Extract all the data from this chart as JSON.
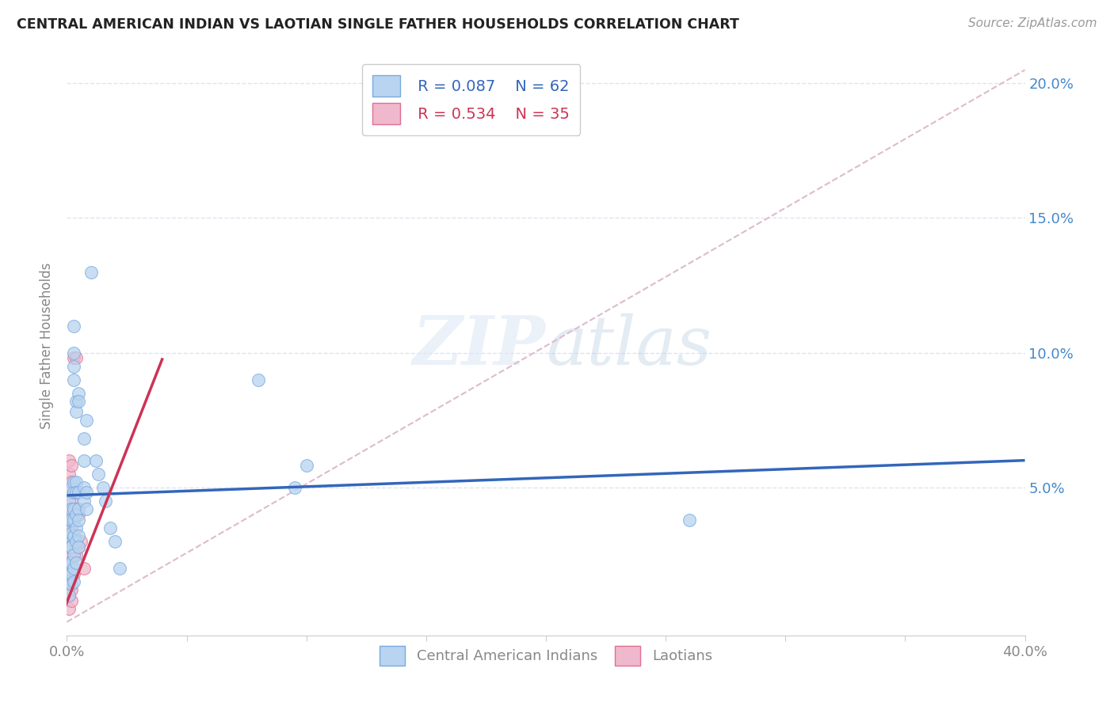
{
  "title": "CENTRAL AMERICAN INDIAN VS LAOTIAN SINGLE FATHER HOUSEHOLDS CORRELATION CHART",
  "source": "Source: ZipAtlas.com",
  "ylabel": "Single Father Households",
  "legend_blue_r": "R = 0.087",
  "legend_blue_n": "N = 62",
  "legend_pink_r": "R = 0.534",
  "legend_pink_n": "N = 35",
  "watermark": "ZIPatlas",
  "blue_scatter": [
    [
      0.001,
      0.045
    ],
    [
      0.001,
      0.038
    ],
    [
      0.001,
      0.032
    ],
    [
      0.001,
      0.028
    ],
    [
      0.001,
      0.022
    ],
    [
      0.001,
      0.018
    ],
    [
      0.001,
      0.015
    ],
    [
      0.001,
      0.01
    ],
    [
      0.002,
      0.05
    ],
    [
      0.002,
      0.042
    ],
    [
      0.002,
      0.038
    ],
    [
      0.002,
      0.033
    ],
    [
      0.002,
      0.028
    ],
    [
      0.002,
      0.022
    ],
    [
      0.002,
      0.018
    ],
    [
      0.002,
      0.014
    ],
    [
      0.003,
      0.11
    ],
    [
      0.003,
      0.1
    ],
    [
      0.003,
      0.095
    ],
    [
      0.003,
      0.09
    ],
    [
      0.003,
      0.052
    ],
    [
      0.003,
      0.048
    ],
    [
      0.003,
      0.042
    ],
    [
      0.003,
      0.038
    ],
    [
      0.003,
      0.032
    ],
    [
      0.003,
      0.025
    ],
    [
      0.003,
      0.02
    ],
    [
      0.003,
      0.015
    ],
    [
      0.004,
      0.082
    ],
    [
      0.004,
      0.078
    ],
    [
      0.004,
      0.052
    ],
    [
      0.004,
      0.048
    ],
    [
      0.004,
      0.04
    ],
    [
      0.004,
      0.035
    ],
    [
      0.004,
      0.03
    ],
    [
      0.004,
      0.022
    ],
    [
      0.005,
      0.085
    ],
    [
      0.005,
      0.082
    ],
    [
      0.005,
      0.048
    ],
    [
      0.005,
      0.042
    ],
    [
      0.005,
      0.038
    ],
    [
      0.005,
      0.032
    ],
    [
      0.005,
      0.028
    ],
    [
      0.007,
      0.068
    ],
    [
      0.007,
      0.06
    ],
    [
      0.007,
      0.05
    ],
    [
      0.007,
      0.045
    ],
    [
      0.008,
      0.075
    ],
    [
      0.008,
      0.048
    ],
    [
      0.008,
      0.042
    ],
    [
      0.01,
      0.13
    ],
    [
      0.012,
      0.06
    ],
    [
      0.013,
      0.055
    ],
    [
      0.015,
      0.05
    ],
    [
      0.016,
      0.045
    ],
    [
      0.018,
      0.035
    ],
    [
      0.02,
      0.03
    ],
    [
      0.022,
      0.02
    ],
    [
      0.08,
      0.09
    ],
    [
      0.095,
      0.05
    ],
    [
      0.1,
      0.058
    ],
    [
      0.26,
      0.038
    ]
  ],
  "pink_scatter": [
    [
      0.001,
      0.06
    ],
    [
      0.001,
      0.055
    ],
    [
      0.001,
      0.048
    ],
    [
      0.001,
      0.042
    ],
    [
      0.001,
      0.038
    ],
    [
      0.001,
      0.033
    ],
    [
      0.001,
      0.028
    ],
    [
      0.001,
      0.022
    ],
    [
      0.001,
      0.018
    ],
    [
      0.001,
      0.015
    ],
    [
      0.001,
      0.01
    ],
    [
      0.001,
      0.005
    ],
    [
      0.002,
      0.058
    ],
    [
      0.002,
      0.052
    ],
    [
      0.002,
      0.045
    ],
    [
      0.002,
      0.04
    ],
    [
      0.002,
      0.035
    ],
    [
      0.002,
      0.03
    ],
    [
      0.002,
      0.025
    ],
    [
      0.002,
      0.018
    ],
    [
      0.002,
      0.012
    ],
    [
      0.002,
      0.008
    ],
    [
      0.003,
      0.098
    ],
    [
      0.003,
      0.042
    ],
    [
      0.003,
      0.038
    ],
    [
      0.003,
      0.032
    ],
    [
      0.003,
      0.025
    ],
    [
      0.003,
      0.018
    ],
    [
      0.004,
      0.098
    ],
    [
      0.004,
      0.042
    ],
    [
      0.004,
      0.025
    ],
    [
      0.005,
      0.04
    ],
    [
      0.005,
      0.028
    ],
    [
      0.006,
      0.03
    ],
    [
      0.007,
      0.02
    ]
  ],
  "blue_line_pts": [
    [
      0.0,
      0.047
    ],
    [
      0.4,
      0.06
    ]
  ],
  "pink_line_pts": [
    [
      -0.001,
      0.005
    ],
    [
      0.04,
      0.098
    ]
  ],
  "diag_line_pts": [
    [
      0.0,
      0.0
    ],
    [
      0.4,
      0.205
    ]
  ],
  "blue_scatter_color": "#b8d4f0",
  "pink_scatter_color": "#f0b8cc",
  "blue_edge_color": "#7aaade",
  "pink_edge_color": "#e07090",
  "blue_line_color": "#3366bb",
  "pink_line_color": "#cc3355",
  "diag_line_color": "#ddbbcc",
  "grid_color": "#e0e4f0",
  "xmin": 0.0,
  "xmax": 0.4,
  "ymin": -0.005,
  "ymax": 0.21
}
